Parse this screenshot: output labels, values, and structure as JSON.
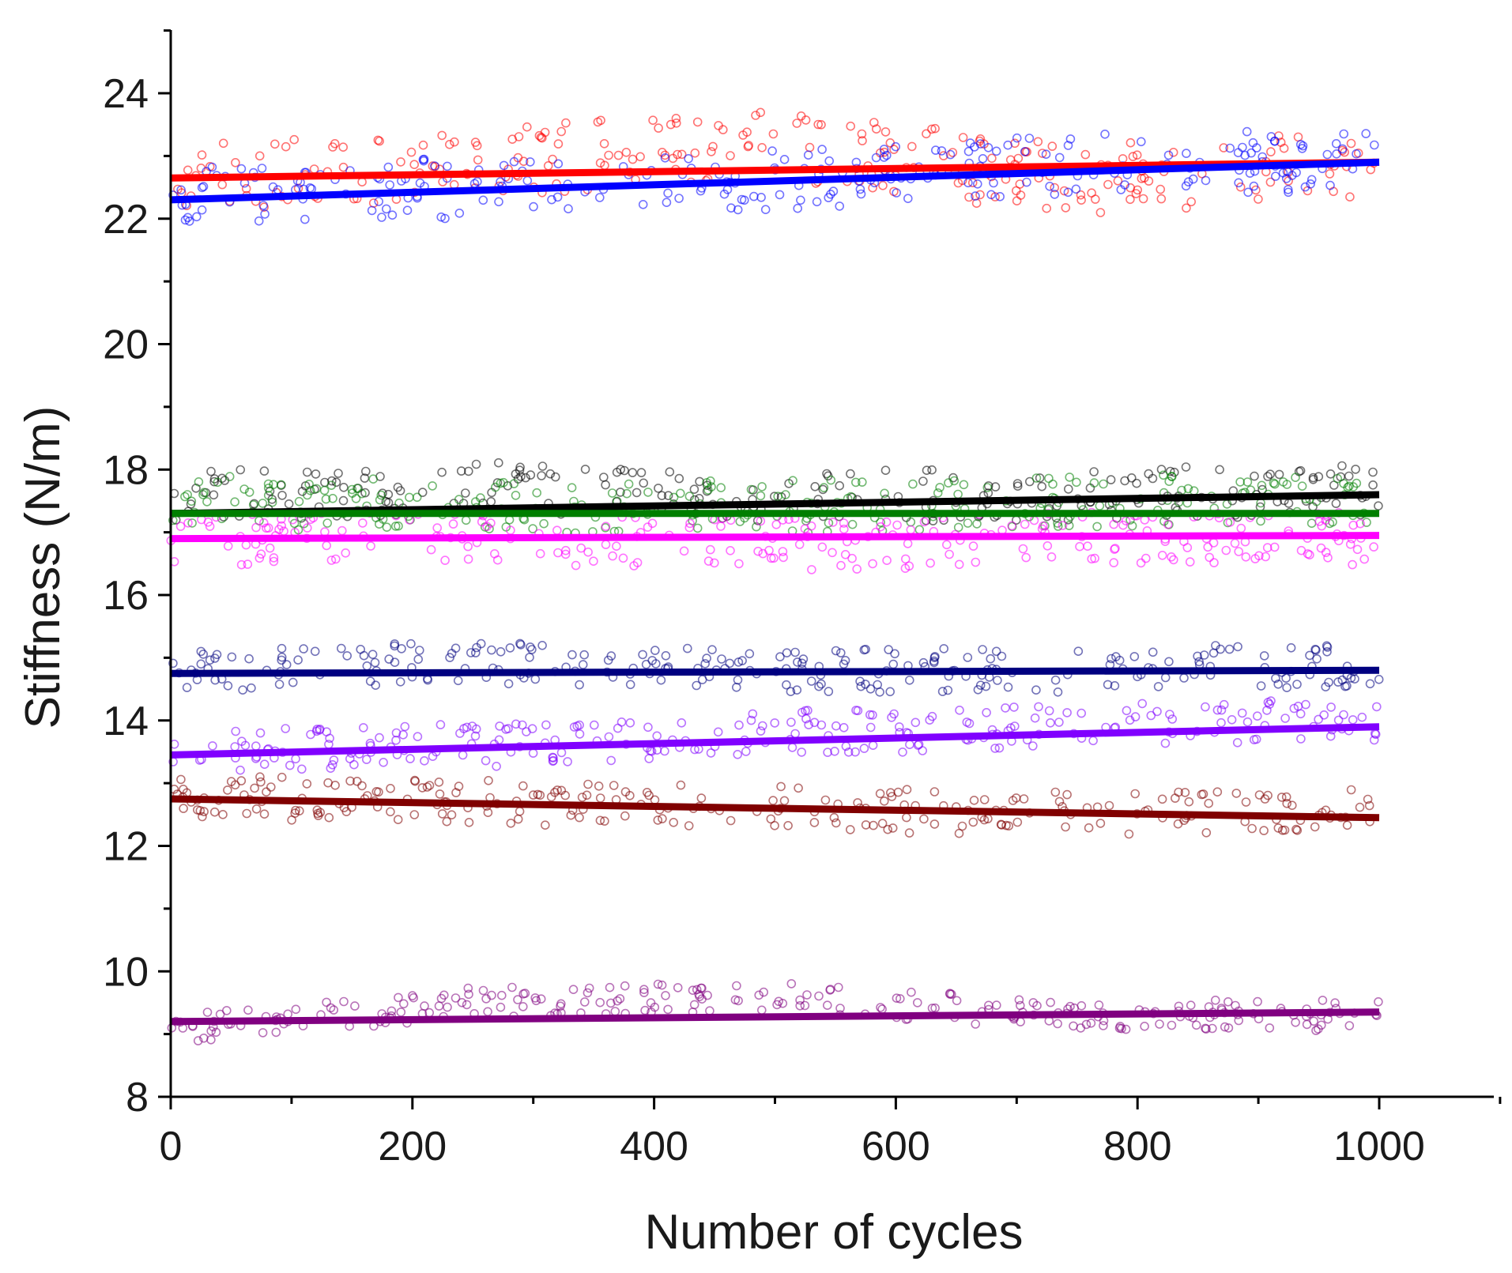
{
  "chart_data": {
    "type": "scatter",
    "title": "",
    "xlabel": "Number of cycles",
    "ylabel": "Stiffness (N/m)",
    "xlim": [
      0,
      1100
    ],
    "ylim": [
      8,
      25
    ],
    "xticks": [
      0,
      200,
      400,
      600,
      800,
      1000
    ],
    "yticks": [
      8,
      10,
      12,
      14,
      16,
      18,
      20,
      22,
      24
    ],
    "grid": false,
    "legend": "none",
    "series": [
      {
        "name": "red",
        "color": "#ff0000",
        "fit": [
          22.65,
          22.9
        ],
        "scatter_center": [
          22.6,
          22.9,
          23.2,
          22.6,
          22.9
        ],
        "scatter_spread": 0.8
      },
      {
        "name": "blue",
        "color": "#0000ff",
        "fit": [
          22.3,
          22.9
        ],
        "scatter_center": [
          22.4,
          22.5,
          22.6,
          22.9,
          22.9
        ],
        "scatter_spread": 0.7
      },
      {
        "name": "black",
        "color": "#000000",
        "fit": [
          17.3,
          17.6
        ],
        "scatter_center": [
          17.6,
          17.7,
          17.6,
          17.6,
          17.7
        ],
        "scatter_spread": 0.6
      },
      {
        "name": "green",
        "color": "#007f00",
        "fit": [
          17.3,
          17.3
        ],
        "scatter_center": [
          17.5,
          17.4,
          17.4,
          17.5,
          17.5
        ],
        "scatter_spread": 0.6
      },
      {
        "name": "magenta",
        "color": "#ff00ff",
        "fit": [
          16.9,
          16.95
        ],
        "scatter_center": [
          16.9,
          16.9,
          16.8,
          16.9,
          16.9
        ],
        "scatter_spread": 0.6
      },
      {
        "name": "navy",
        "color": "#000080",
        "fit": [
          14.75,
          14.8
        ],
        "scatter_center": [
          14.8,
          14.9,
          14.8,
          14.8,
          14.9
        ],
        "scatter_spread": 0.5
      },
      {
        "name": "violet",
        "color": "#8000ff",
        "fit": [
          13.45,
          13.9
        ],
        "scatter_center": [
          13.5,
          13.6,
          13.8,
          13.9,
          14.0
        ],
        "scatter_spread": 0.5
      },
      {
        "name": "dark-red",
        "color": "#800000",
        "fit": [
          12.75,
          12.45
        ],
        "scatter_center": [
          12.8,
          12.7,
          12.6,
          12.5,
          12.6
        ],
        "scatter_spread": 0.5
      },
      {
        "name": "purple",
        "color": "#800080",
        "fit": [
          9.2,
          9.35
        ],
        "scatter_center": [
          9.1,
          9.5,
          9.6,
          9.3,
          9.3
        ],
        "scatter_spread": 0.35
      }
    ]
  }
}
